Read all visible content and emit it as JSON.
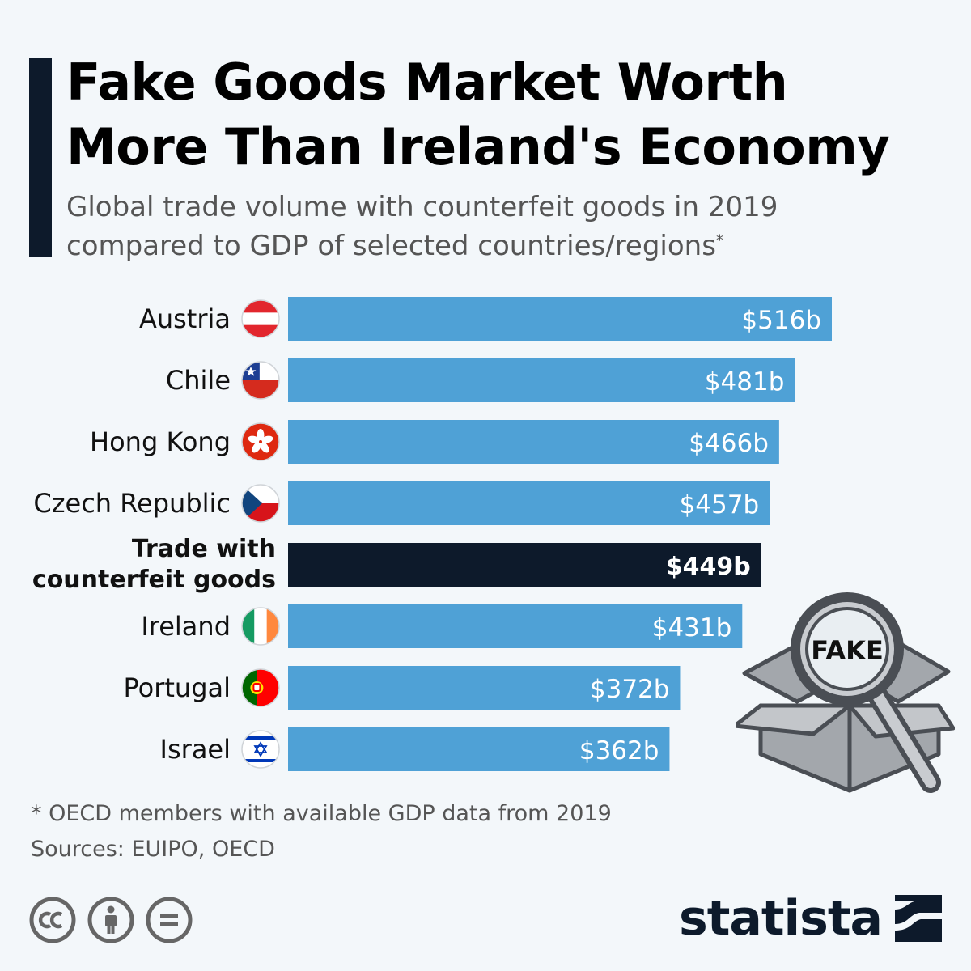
{
  "title_line1": "Fake Goods Market Worth",
  "title_line2": "More Than Ireland's Economy",
  "subtitle_line1": "Global trade volume with counterfeit goods in 2019",
  "subtitle_line2": "compared to GDP of selected countries/regions",
  "subtitle_marker": "*",
  "footnote": "* OECD members with available GDP data from 2019",
  "sources": "Sources: EUIPO, OECD",
  "brand": "statista",
  "illustration_text": "FAKE",
  "colors": {
    "bar": "#4fa1d6",
    "highlight": "#0d1a2b",
    "accent": "#0d1a2b"
  },
  "chart_data": {
    "type": "bar",
    "orientation": "horizontal",
    "title": "Fake Goods Market Worth More Than Ireland's Economy",
    "unit": "billion USD",
    "categories": [
      "Austria",
      "Chile",
      "Hong Kong",
      "Czech Republic",
      "Trade with counterfeit goods",
      "Ireland",
      "Portugal",
      "Israel"
    ],
    "values": [
      516,
      481,
      466,
      457,
      449,
      431,
      372,
      362
    ],
    "value_labels": [
      "$516b",
      "$481b",
      "$466b",
      "$457b",
      "$449b",
      "$431b",
      "$372b",
      "$362b"
    ],
    "highlight_index": 4,
    "label_lines": [
      [
        "Austria"
      ],
      [
        "Chile"
      ],
      [
        "Hong Kong"
      ],
      [
        "Czech Republic"
      ],
      [
        "Trade with",
        "counterfeit goods"
      ],
      [
        "Ireland"
      ],
      [
        "Portugal"
      ],
      [
        "Israel"
      ]
    ],
    "flags": [
      "austria",
      "chile",
      "hong-kong",
      "czech-republic",
      null,
      "ireland",
      "portugal",
      "israel"
    ],
    "xlim": [
      0,
      516
    ]
  }
}
